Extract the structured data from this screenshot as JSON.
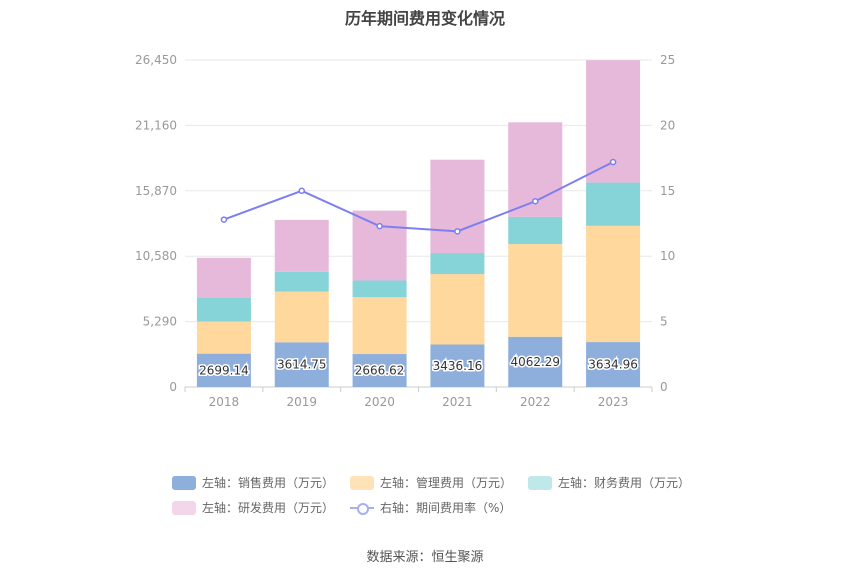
{
  "title": "历年期间费用变化情况",
  "source": "数据来源：恒生聚源",
  "colors": {
    "sales": "#8eaedb",
    "admin": "#fed89c",
    "finance": "#86d4d8",
    "rd": "#e6b8da",
    "rate": "#7b7ff0",
    "grid": "#e8e8e8",
    "axis_text": "#999999"
  },
  "legend": [
    {
      "label": "左轴：销售费用（万元）",
      "color": "#8eaedb",
      "kind": "bar"
    },
    {
      "label": "左轴：管理费用（万元）",
      "color": "#ffe2b8",
      "kind": "bar"
    },
    {
      "label": "左轴：财务费用（万元）",
      "color": "#bfe8ea",
      "kind": "bar"
    },
    {
      "label": "左轴：研发费用（万元）",
      "color": "#f2d6ea",
      "kind": "bar"
    },
    {
      "label": "右轴：期间费用率（%）",
      "color": "#a9adf2",
      "kind": "line"
    }
  ],
  "chart_data": {
    "type": "bar",
    "stacked": true,
    "categories": [
      "2018",
      "2019",
      "2020",
      "2021",
      "2022",
      "2023"
    ],
    "y_left": {
      "ticks": [
        "0",
        "5,290",
        "10,580",
        "15,870",
        "21,160",
        "26,450"
      ],
      "ylim": [
        0,
        26450
      ]
    },
    "y_right": {
      "ticks": [
        "0",
        "5",
        "10",
        "15",
        "20",
        "25"
      ],
      "ylim": [
        0,
        25
      ]
    },
    "series": [
      {
        "name": "左轴：销售费用（万元）",
        "key": "sales",
        "axis": "left",
        "values": [
          2699.14,
          3614.75,
          2666.62,
          3436.16,
          4062.29,
          3634.96
        ],
        "show_labels": true
      },
      {
        "name": "左轴：管理费用（万元）",
        "key": "admin",
        "axis": "left",
        "values": [
          2600,
          4100,
          4600,
          5700,
          7500,
          9400
        ]
      },
      {
        "name": "左轴：财务费用（万元）",
        "key": "finance",
        "axis": "left",
        "values": [
          1900,
          1600,
          1350,
          1700,
          2200,
          3500
        ]
      },
      {
        "name": "左轴：研发费用（万元）",
        "key": "rd",
        "axis": "left",
        "values": [
          3250,
          4200,
          5650,
          7550,
          7650,
          9900
        ]
      },
      {
        "name": "右轴：期间费用率（%）",
        "key": "rate",
        "axis": "right",
        "type": "line",
        "values": [
          12.8,
          15.0,
          12.3,
          11.9,
          14.2,
          17.2
        ]
      }
    ]
  }
}
